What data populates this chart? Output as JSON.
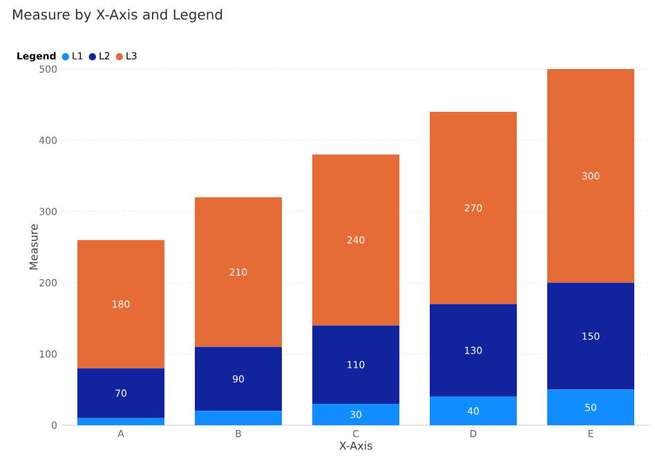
{
  "chart_data": {
    "type": "bar",
    "title": "Measure by X-Axis and Legend",
    "xlabel": "X-Axis",
    "ylabel": "Measure",
    "legend_title": "Legend",
    "categories": [
      "A",
      "B",
      "C",
      "D",
      "E"
    ],
    "stacked": true,
    "ylim": [
      0,
      500
    ],
    "yticks": [
      0,
      100,
      200,
      300,
      400,
      500
    ],
    "grid": "y",
    "legend": "top left",
    "series": [
      {
        "name": "L1",
        "color": "#118dff",
        "values": [
          10,
          20,
          30,
          40,
          50
        ],
        "value_labels": [
          null,
          null,
          "30",
          "40",
          "50"
        ]
      },
      {
        "name": "L2",
        "color": "#12239e",
        "values": [
          70,
          90,
          110,
          130,
          150
        ],
        "value_labels": [
          "70",
          "90",
          "110",
          "130",
          "150"
        ]
      },
      {
        "name": "L3",
        "color": "#e66c37",
        "values": [
          180,
          210,
          240,
          270,
          300
        ],
        "value_labels": [
          "180",
          "210",
          "240",
          "270",
          "300"
        ]
      }
    ]
  }
}
